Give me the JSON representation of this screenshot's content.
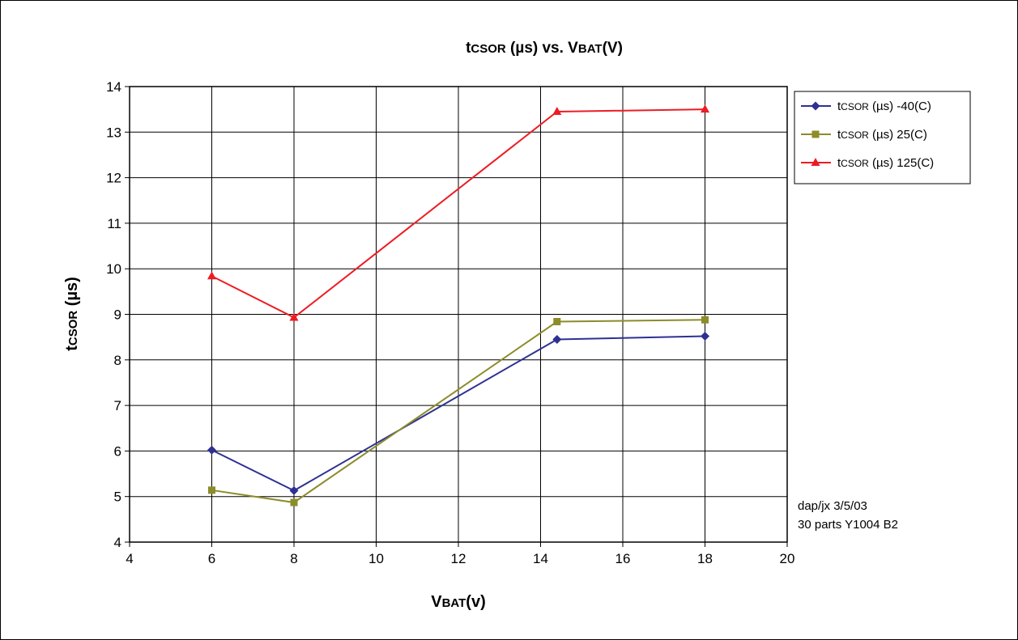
{
  "chart_data": {
    "type": "line",
    "title": {
      "t": "t",
      "sub": "CSOR",
      "rest": " (µs) vs. V",
      "sub2": "BAT",
      "end": "(V)"
    },
    "xlabel": {
      "main": "V",
      "sub": "BAT",
      "end": "(v)"
    },
    "ylabel": {
      "main": "t",
      "sub": "CSOR",
      "end": " (µs)"
    },
    "xlim": [
      4,
      20
    ],
    "ylim": [
      4,
      14
    ],
    "xticks": [
      4,
      6,
      8,
      10,
      12,
      14,
      16,
      18,
      20
    ],
    "yticks": [
      4,
      5,
      6,
      7,
      8,
      9,
      10,
      11,
      12,
      13,
      14
    ],
    "grid": true,
    "legend_position": "top-right",
    "x": [
      6,
      8,
      14.4,
      18
    ],
    "series": [
      {
        "name": "tCSOR (µs) -40(C)",
        "legend": {
          "t": "t",
          "sub": "CSOR",
          "rest": " (µs) -40(C)"
        },
        "values": [
          6.02,
          5.13,
          8.45,
          8.52
        ],
        "color": "#2e3192",
        "marker": "diamond"
      },
      {
        "name": "tCSOR (µs) 25(C)",
        "legend": {
          "t": "t",
          "sub": "CSOR",
          "rest": " (µs) 25(C)"
        },
        "values": [
          5.14,
          4.87,
          8.84,
          8.88
        ],
        "color": "#8c8c2a",
        "marker": "square"
      },
      {
        "name": "tCSOR (µs) 125(C)",
        "legend": {
          "t": "t",
          "sub": "CSOR",
          "rest": " (µs) 125(C)"
        },
        "values": [
          9.84,
          8.93,
          13.45,
          13.5
        ],
        "color": "#ed1c24",
        "marker": "triangle"
      }
    ],
    "annotations": [
      "dap/jx 3/5/03",
      "30 parts Y1004 B2"
    ]
  }
}
